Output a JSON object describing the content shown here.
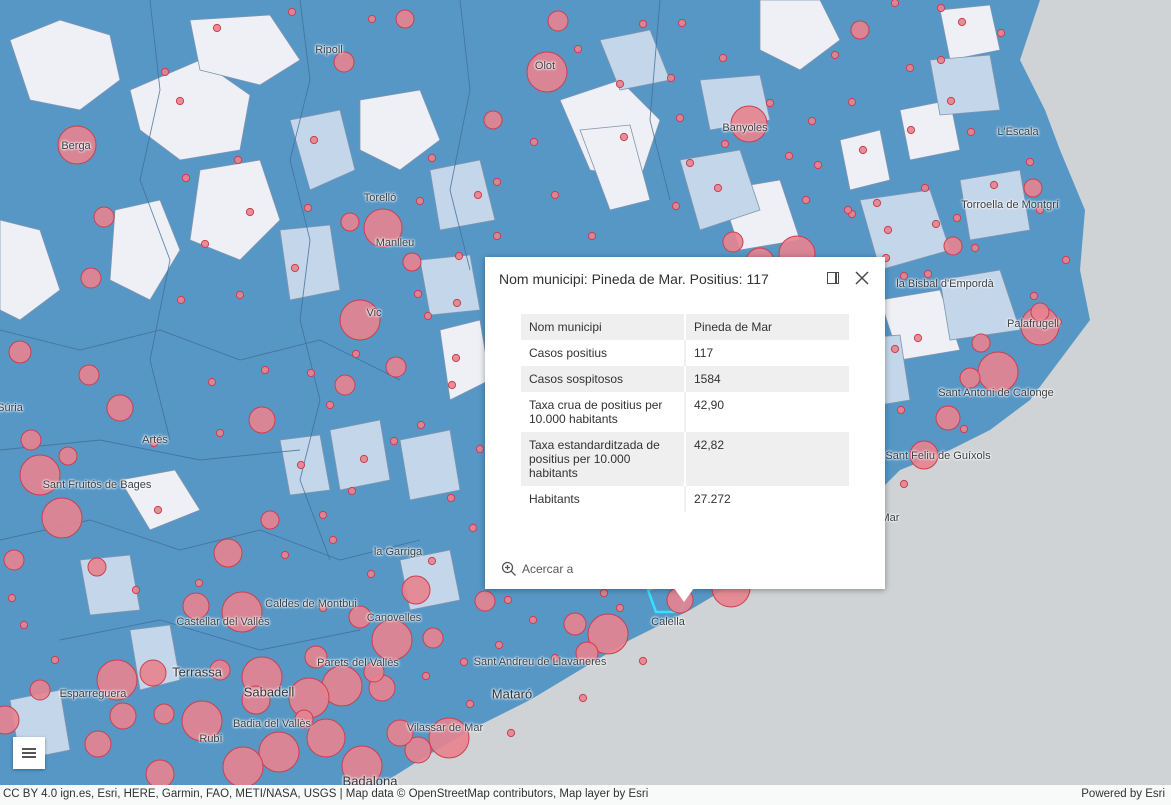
{
  "map": {
    "colors": {
      "sea": "#cfd3d6",
      "choropleth_dark": "#5797c6",
      "choropleth_mid": "#8fb6d9",
      "choropleth_light": "#c3d6ea",
      "choropleth_pale": "#eef0f6",
      "bubble_fill": "#e8838f",
      "bubble_stroke": "#c9404f",
      "selected_outline": "#36e0ff"
    },
    "labels": [
      "Ripoll",
      "Olot",
      "Berga",
      "Banyoles",
      "L'Escala",
      "Torelló",
      "Manlleu",
      "Torroella de Montgrí",
      "la Bisbal d'Empordà",
      "Palafrugell",
      "Vic",
      "Súria",
      "Artés",
      "Sant Antoni de Calonge",
      "Sant Fruitós de Bages",
      "Sant Feliu de Guíxols",
      "la Garriga",
      "Caldes de Montbui",
      "Castellar del Vallès",
      "Canovelles",
      "Calella",
      "Terrassa",
      "Parets del Vallès",
      "Sant Andreu de Llavaneres",
      "Sabadell",
      "Esparreguera",
      "Mataró",
      "Badia del Vallès",
      "Vilassar de Mar",
      "Rubí",
      "Badalona",
      "Mar"
    ]
  },
  "popup": {
    "title": "Nom municipi: Pineda de Mar. Positius: 117",
    "dock_icon": "dock-icon",
    "close_icon": "close-icon",
    "rows": [
      {
        "key": "Nom municipi",
        "value": "Pineda de Mar"
      },
      {
        "key": "Casos positius",
        "value": "117"
      },
      {
        "key": "Casos sospitosos",
        "value": "1584"
      },
      {
        "key": "Taxa crua de positius per 10.000 habitants",
        "value": "42,90"
      },
      {
        "key": "Taxa estandarditzada de positius per 10.000 habitants",
        "value": "42,82"
      },
      {
        "key": "Habitants",
        "value": "27.272"
      }
    ],
    "zoom_to_label": "Acercar a",
    "zoom_icon": "zoom-in-icon"
  },
  "menu_icon": "hamburger-icon",
  "attribution": {
    "text": "CC BY 4.0 ign.es, Esri, HERE, Garmin, FAO, METI/NASA, USGS | Map data © OpenStreetMap contributors, Map layer by Esri",
    "powered_by": "Powered by Esri"
  }
}
